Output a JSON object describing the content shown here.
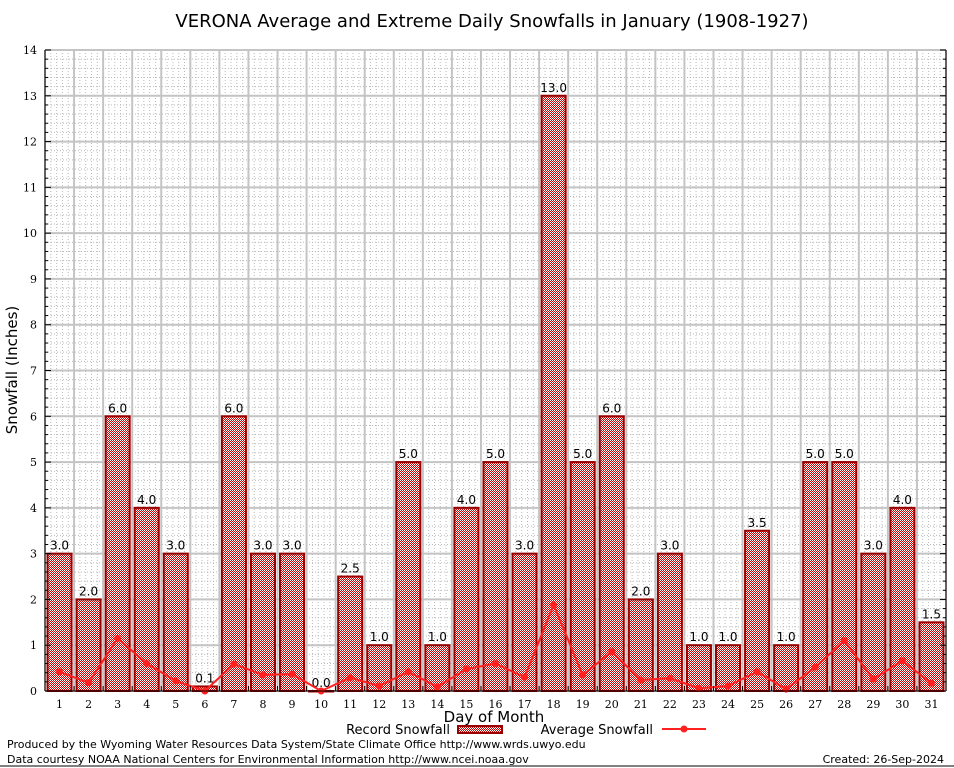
{
  "chart_data": {
    "type": "bar",
    "title": "VERONA Average and Extreme Daily Snowfalls in January (1908-1927)",
    "xlabel": "Day of Month",
    "ylabel": "Snowfall (Inches)",
    "ylim": [
      0,
      14
    ],
    "yticks": [
      0,
      1,
      2,
      3,
      4,
      5,
      6,
      7,
      8,
      9,
      10,
      11,
      12,
      13,
      14
    ],
    "grid": true,
    "legend_position": "bottom-center",
    "categories": [
      "1",
      "2",
      "3",
      "4",
      "5",
      "6",
      "7",
      "8",
      "9",
      "10",
      "11",
      "12",
      "13",
      "14",
      "15",
      "16",
      "17",
      "18",
      "19",
      "20",
      "21",
      "22",
      "23",
      "24",
      "25",
      "26",
      "27",
      "28",
      "29",
      "30",
      "31"
    ],
    "series": [
      {
        "name": "Record Snowfall",
        "type": "bar",
        "color": "#cc0000",
        "values": [
          3.0,
          2.0,
          6.0,
          4.0,
          3.0,
          0.1,
          6.0,
          3.0,
          3.0,
          0.0,
          2.5,
          1.0,
          5.0,
          1.0,
          4.0,
          5.0,
          3.0,
          13.0,
          5.0,
          6.0,
          2.0,
          3.0,
          1.0,
          1.0,
          3.5,
          1.0,
          5.0,
          5.0,
          3.0,
          4.0,
          1.5
        ],
        "labels": [
          "3.0",
          "2.0",
          "6.0",
          "4.0",
          "3.0",
          "0.1",
          "6.0",
          "3.0",
          "3.0",
          "0.0",
          "2.5",
          "1.0",
          "5.0",
          "1.0",
          "4.0",
          "5.0",
          "3.0",
          "13.0",
          "5.0",
          "6.0",
          "2.0",
          "3.0",
          "1.0",
          "1.0",
          "3.5",
          "1.0",
          "5.0",
          "5.0",
          "3.0",
          "4.0",
          "1.5"
        ]
      },
      {
        "name": "Average Snowfall",
        "type": "line",
        "color": "#ff2020",
        "values": [
          0.42,
          0.18,
          1.15,
          0.6,
          0.22,
          0.0,
          0.59,
          0.35,
          0.37,
          0.0,
          0.29,
          0.11,
          0.42,
          0.09,
          0.48,
          0.6,
          0.3,
          1.88,
          0.35,
          0.86,
          0.24,
          0.28,
          0.06,
          0.11,
          0.42,
          0.04,
          0.52,
          1.1,
          0.26,
          0.66,
          0.17
        ]
      }
    ]
  },
  "footer": {
    "line1": "Produced by the Wyoming Water Resources Data System/State Climate Office http://www.wrds.uwyo.edu",
    "line2": "Data courtesy NOAA National Centers for Environmental Information http://www.ncei.noaa.gov",
    "created": "Created: 26-Sep-2024"
  }
}
